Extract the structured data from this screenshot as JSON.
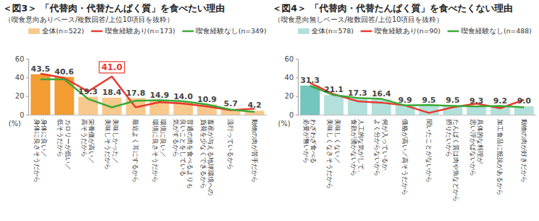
{
  "chart_data": [
    {
      "type": "bar",
      "title": "＜図3＞ 「代替肉・代替たんぱく質」を食べたい理由",
      "subtitle": "（喫食意向ありベース/複数回答/上位10項目を抜粋）",
      "y_label": "(%)",
      "categories": [
        "身体に良い／\n身体に良さそうだから",
        "カロリーが低い／\n低そうだから",
        "栄養価が高い／\n高そうだから",
        "美味しかった／\n美味しそうだから",
        "最近よく耳にするから",
        "環境に良い／\n環境に良さそうだから",
        "普通の肉を食べるよりも\n良いことをしている\n気がするから",
        "畜産が与える地球環境への\n負荷を少なくできるから",
        "流行っているから",
        "動物の肉が苦手だから"
      ],
      "series": [
        {
          "name": "全体(n=522)",
          "type": "bar",
          "color": "#f8c98c",
          "colors": [
            "#f39c32",
            "#f39c32",
            "#f8c98c",
            "#f8c98c",
            "#f8c98c",
            "#f8c98c",
            "#f8c98c",
            "#f8c98c",
            "#f8c98c",
            "#f8c98c"
          ],
          "values": [
            43.5,
            40.6,
            19.3,
            18.4,
            17.8,
            14.9,
            14.0,
            10.9,
            5.7,
            4.2
          ],
          "value_labels": [
            "43.5",
            "40.6",
            "19.3",
            "18.4",
            "17.8",
            "14.9",
            "14.0",
            "10.9",
            "5.7",
            "4.2"
          ]
        },
        {
          "name": "喫食経験あり(n=173)",
          "type": "line",
          "color": "#e8382c",
          "values": [
            44.0,
            39.5,
            25.0,
            41.0,
            8.0,
            13.5,
            12.0,
            9.0,
            5.0,
            6.5
          ],
          "value_labels": [
            null,
            null,
            null,
            "41.0",
            null,
            null,
            null,
            null,
            null,
            null
          ]
        },
        {
          "name": "喫食経験なし(n=349)",
          "type": "line",
          "color": "#3aa935",
          "values": [
            38.0,
            38.0,
            17.0,
            8.0,
            15.0,
            15.5,
            14.5,
            11.0,
            5.5,
            3.0
          ]
        }
      ],
      "ylim": [
        0,
        60
      ],
      "yticks": [
        0,
        20,
        40,
        60
      ],
      "grid": false,
      "data_labels": true,
      "legend": "top"
    },
    {
      "type": "bar",
      "title": "＜図4＞ 「代替肉・代替たんぱく質」を食べたくない理由",
      "subtitle": "（喫食意向無しベース/複数回答/上位10項目を抜粋）",
      "y_label": "(%)",
      "categories": [
        "わざわざ食べる\n必要が無いから",
        "美味しくない／\n美味しくなさそうだから",
        "人工的な気がして、\n食欲が湧かないから",
        "何が入っているか\nよく分からないから",
        "価格が高い／高そうだから",
        "聞いたことがないから",
        "たんぱく質は肉や魚などから\n摂りたいから",
        "具体的な料理が\n思い浮かばないから",
        "加工食品に抵抗があるから",
        "動物の肉が好きだから"
      ],
      "series": [
        {
          "name": "全体(n=578)",
          "type": "bar",
          "color": "#b3e0db",
          "colors": [
            "#72c6be",
            "#b3e0db",
            "#b3e0db",
            "#b3e0db",
            "#b3e0db",
            "#b3e0db",
            "#b3e0db",
            "#b3e0db",
            "#b3e0db",
            "#b3e0db"
          ],
          "values": [
            31.3,
            21.1,
            17.3,
            16.4,
            9.9,
            9.5,
            9.5,
            9.3,
            9.2,
            9.0
          ],
          "value_labels": [
            "31.3",
            "21.1",
            "17.3",
            "16.4",
            "9.9",
            "9.5",
            "9.5",
            "9.3",
            "9.2",
            "9.0"
          ]
        },
        {
          "name": "喫食経験あり(n=90)",
          "type": "line",
          "color": "#e8382c",
          "values": [
            34.0,
            22.0,
            14.5,
            13.0,
            10.0,
            2.0,
            8.0,
            12.0,
            7.0,
            16.0
          ]
        },
        {
          "name": "喫食経験なし(n=488)",
          "type": "line",
          "color": "#3aa935",
          "values": [
            31.0,
            21.0,
            18.0,
            17.0,
            10.0,
            10.5,
            9.5,
            9.0,
            9.5,
            8.0
          ]
        }
      ],
      "ylim": [
        0,
        60
      ],
      "yticks": [
        0,
        20,
        40,
        60
      ],
      "grid": false,
      "data_labels": true,
      "legend": "top"
    }
  ]
}
